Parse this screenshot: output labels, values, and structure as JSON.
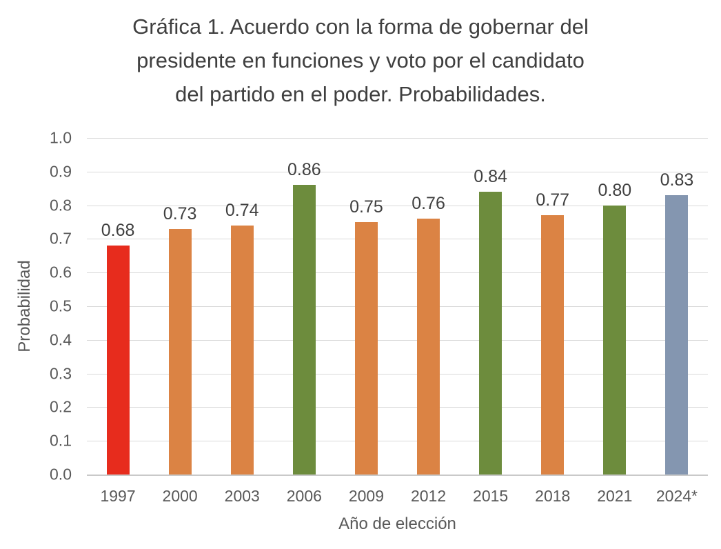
{
  "chart_data": {
    "type": "bar",
    "title": "Gráfica 1. Acuerdo con la forma de gobernar del presidente en funciones y voto por el candidato del partido en el poder. Probabilidades.",
    "title_lines": [
      "Gráfica 1. Acuerdo con la forma de gobernar del",
      "presidente en funciones y voto por el candidato",
      "del partido en el poder. Probabilidades."
    ],
    "xlabel": "Año de elección",
    "ylabel": "Probabilidad",
    "categories": [
      "1997",
      "2000",
      "2003",
      "2006",
      "2009",
      "2012",
      "2015",
      "2018",
      "2021",
      "2024*"
    ],
    "values": [
      0.68,
      0.73,
      0.74,
      0.86,
      0.75,
      0.76,
      0.84,
      0.77,
      0.8,
      0.83
    ],
    "data_labels": [
      "0.68",
      "0.73",
      "0.74",
      "0.86",
      "0.75",
      "0.76",
      "0.84",
      "0.77",
      "0.80",
      "0.83"
    ],
    "bar_colors": [
      "#e72c1d",
      "#db8344",
      "#db8344",
      "#6d8c3d",
      "#db8344",
      "#db8344",
      "#6d8c3d",
      "#db8344",
      "#6d8c3d",
      "#8496b0"
    ],
    "ylim": [
      0.0,
      1.0
    ],
    "ytick_step": 0.1,
    "ytick_labels": [
      "0.0",
      "0.1",
      "0.2",
      "0.3",
      "0.4",
      "0.5",
      "0.6",
      "0.7",
      "0.8",
      "0.9",
      "1.0"
    ],
    "grid": true,
    "legend": "none",
    "colors": {
      "grid": "#d9d9d9",
      "baseline": "#c9c9c9",
      "axis_text": "#595959",
      "title_text": "#3f3f3f",
      "data_label_text": "#404040",
      "background": "#ffffff"
    }
  }
}
